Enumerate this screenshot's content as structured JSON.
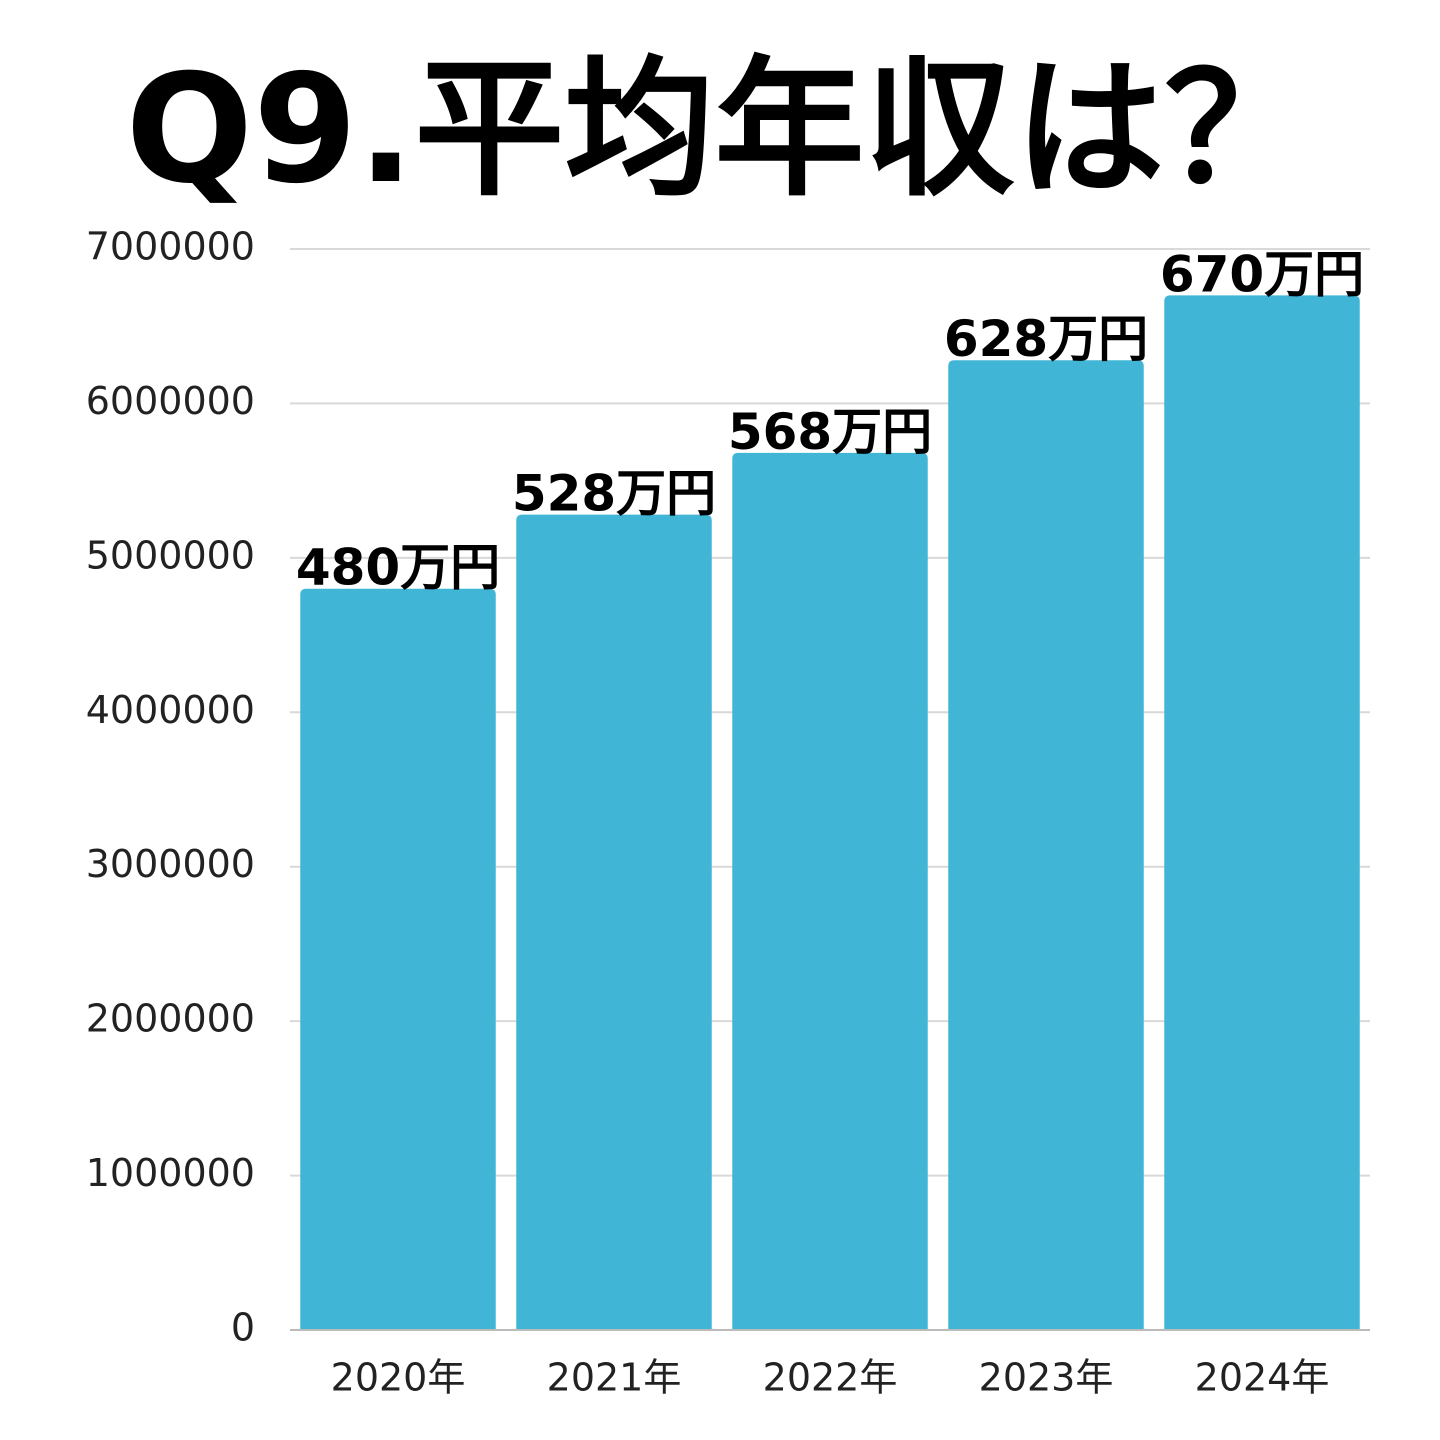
{
  "chart_data": {
    "type": "bar",
    "title": "Q9.平均年収は？",
    "categories": [
      "2020年",
      "2021年",
      "2022年",
      "2023年",
      "2024年"
    ],
    "values": [
      4800000,
      5280000,
      5680000,
      6280000,
      6700000
    ],
    "value_labels": [
      "480万円",
      "528万円",
      "568万円",
      "628万円",
      "670万円"
    ],
    "color": "#41b5d5",
    "ylim": [
      0,
      7000000
    ],
    "yticks": [
      0,
      1000000,
      2000000,
      3000000,
      4000000,
      5000000,
      6000000,
      7000000
    ],
    "grid": true
  }
}
